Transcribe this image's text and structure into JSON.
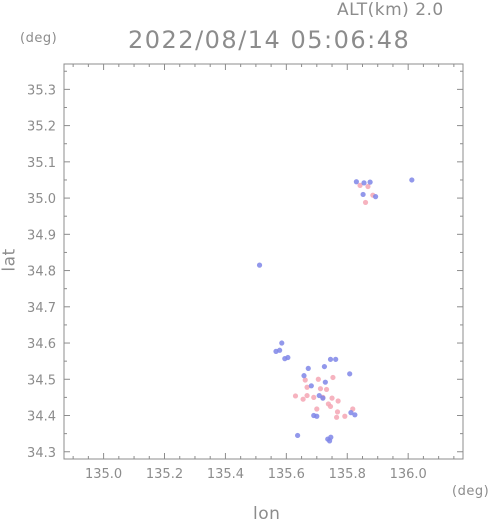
{
  "header": {
    "altitude": "ALT(km) 2.0",
    "timestamp": "2022/08/14 05:06:48"
  },
  "chart_data": {
    "type": "scatter",
    "xlabel": "lon",
    "ylabel": "lat",
    "x_unit": "(deg)",
    "y_unit": "(deg)",
    "xlim": [
      134.87,
      136.18
    ],
    "ylim": [
      34.28,
      35.37
    ],
    "xticks": [
      135.0,
      135.2,
      135.4,
      135.6,
      135.8,
      136.0
    ],
    "yticks": [
      34.3,
      34.4,
      34.5,
      34.6,
      34.7,
      34.8,
      34.9,
      35.0,
      35.1,
      35.2,
      35.3
    ],
    "grid": false,
    "colors": {
      "positive": "#f4a6b4",
      "negative": "#7f86e8",
      "axis": "#8c8c8c"
    },
    "series": [
      {
        "color": "positive",
        "points": [
          [
            135.842,
            35.035
          ],
          [
            135.868,
            35.032
          ],
          [
            135.884,
            35.008
          ],
          [
            135.86,
            34.988
          ],
          [
            135.662,
            34.498
          ],
          [
            135.668,
            34.478
          ],
          [
            135.705,
            34.5
          ],
          [
            135.712,
            34.474
          ],
          [
            135.668,
            34.455
          ],
          [
            135.655,
            34.445
          ],
          [
            135.69,
            34.45
          ],
          [
            135.72,
            34.45
          ],
          [
            135.75,
            34.448
          ],
          [
            135.77,
            34.44
          ],
          [
            135.745,
            34.425
          ],
          [
            135.768,
            34.41
          ],
          [
            135.7,
            34.418
          ],
          [
            135.738,
            34.432
          ],
          [
            135.818,
            34.418
          ],
          [
            135.792,
            34.398
          ],
          [
            135.765,
            34.395
          ],
          [
            135.732,
            34.472
          ],
          [
            135.753,
            34.505
          ],
          [
            135.63,
            34.454
          ]
        ]
      },
      {
        "color": "negative",
        "points": [
          [
            135.83,
            35.045
          ],
          [
            135.855,
            35.042
          ],
          [
            135.875,
            35.044
          ],
          [
            135.893,
            35.004
          ],
          [
            135.852,
            35.01
          ],
          [
            136.012,
            35.05
          ],
          [
            135.512,
            34.815
          ],
          [
            135.566,
            34.577
          ],
          [
            135.578,
            34.58
          ],
          [
            135.595,
            34.557
          ],
          [
            135.605,
            34.56
          ],
          [
            135.585,
            34.6
          ],
          [
            135.672,
            34.53
          ],
          [
            135.658,
            34.51
          ],
          [
            135.745,
            34.555
          ],
          [
            135.725,
            34.535
          ],
          [
            135.762,
            34.555
          ],
          [
            135.808,
            34.515
          ],
          [
            135.69,
            34.4
          ],
          [
            135.7,
            34.398
          ],
          [
            135.72,
            34.448
          ],
          [
            135.708,
            34.455
          ],
          [
            135.812,
            34.408
          ],
          [
            135.825,
            34.402
          ],
          [
            135.682,
            34.482
          ],
          [
            135.728,
            34.492
          ],
          [
            135.637,
            34.345
          ],
          [
            135.736,
            34.335
          ],
          [
            135.746,
            34.34
          ],
          [
            135.742,
            34.33
          ]
        ]
      }
    ]
  }
}
